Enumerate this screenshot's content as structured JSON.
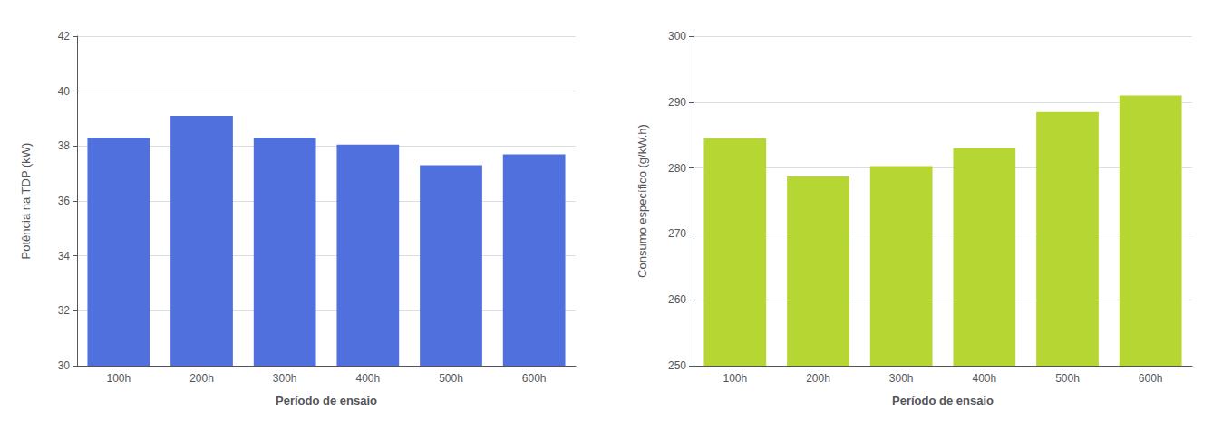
{
  "chart_data": [
    {
      "type": "bar",
      "categories": [
        "100h",
        "200h",
        "300h",
        "400h",
        "500h",
        "600h"
      ],
      "values": [
        38.3,
        39.1,
        38.3,
        38.05,
        37.3,
        37.7
      ],
      "ylabel": "Potência na TDP (kW)",
      "xlabel": "Período de ensaio",
      "ylim": [
        30,
        42
      ],
      "yticks": [
        30,
        32,
        34,
        36,
        38,
        40,
        42
      ],
      "grid": true
    },
    {
      "type": "bar",
      "categories": [
        "100h",
        "200h",
        "300h",
        "400h",
        "500h",
        "600h"
      ],
      "values": [
        284.5,
        278.7,
        280.3,
        283.0,
        288.5,
        291.0
      ],
      "ylabel": "Consumo específico (g/kW.h)",
      "xlabel": "Período de ensaio",
      "ylim": [
        250,
        300
      ],
      "yticks": [
        250,
        260,
        270,
        280,
        290,
        300
      ],
      "grid": true
    }
  ]
}
